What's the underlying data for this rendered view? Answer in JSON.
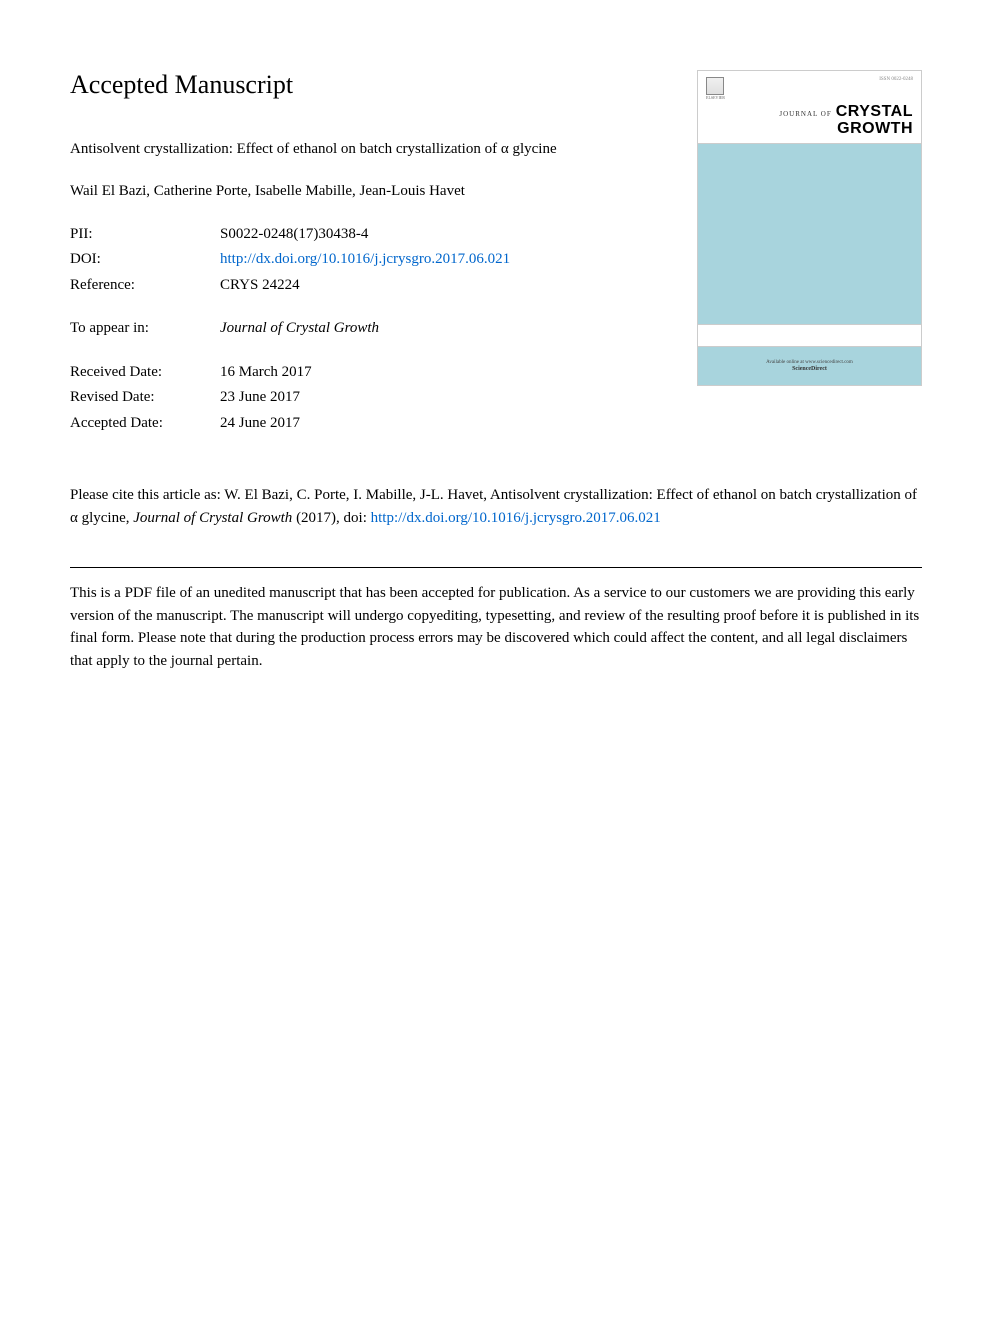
{
  "heading": "Accepted Manuscript",
  "article_title": "Antisolvent crystallization: Effect of ethanol on batch crystallization of α glycine",
  "authors": "Wail El Bazi, Catherine Porte, Isabelle Mabille, Jean-Louis Havet",
  "metadata": {
    "pii": {
      "label": "PII:",
      "value": "S0022-0248(17)30438-4"
    },
    "doi": {
      "label": "DOI:",
      "value": "http://dx.doi.org/10.1016/j.jcrysgro.2017.06.021"
    },
    "reference": {
      "label": "Reference:",
      "value": "CRYS 24224"
    },
    "to_appear": {
      "label": "To appear in:",
      "value": "Journal of Crystal Growth"
    },
    "received": {
      "label": "Received Date:",
      "value": "16 March 2017"
    },
    "revised": {
      "label": "Revised Date:",
      "value": "23 June 2017"
    },
    "accepted": {
      "label": "Accepted Date:",
      "value": "24 June 2017"
    }
  },
  "journal_cover": {
    "issn": "ISSN 0022-0248",
    "elsevier_label": "ELSEVIER",
    "journal_of": "JOURNAL OF",
    "name_line1": "CRYSTAL",
    "name_line2": "GROWTH",
    "footer_text": "Available online at www.sciencedirect.com",
    "sciencedirect": "ScienceDirect",
    "colors": {
      "blue_band": "#a8d4dd",
      "border": "#cccccc"
    }
  },
  "citation": {
    "prefix": "Please cite this article as: W. El Bazi, C. Porte, I. Mabille, J-L. Havet, Antisolvent crystallization: Effect of ethanol on batch crystallization of α glycine, ",
    "journal_italic": "Journal of Crystal Growth",
    "year": " (2017), doi: ",
    "doi_link": "http://dx.doi.org/10.1016/j.jcrysgro.2017.06.021"
  },
  "disclaimer": "This is a PDF file of an unedited manuscript that has been accepted for publication. As a service to our customers we are providing this early version of the manuscript. The manuscript will undergo copyediting, typesetting, and review of the resulting proof before it is published in its final form. Please note that during the production process errors may be discovered which could affect the content, and all legal disclaimers that apply to the journal pertain.",
  "colors": {
    "link": "#0066cc",
    "text": "#000000",
    "background": "#ffffff"
  }
}
